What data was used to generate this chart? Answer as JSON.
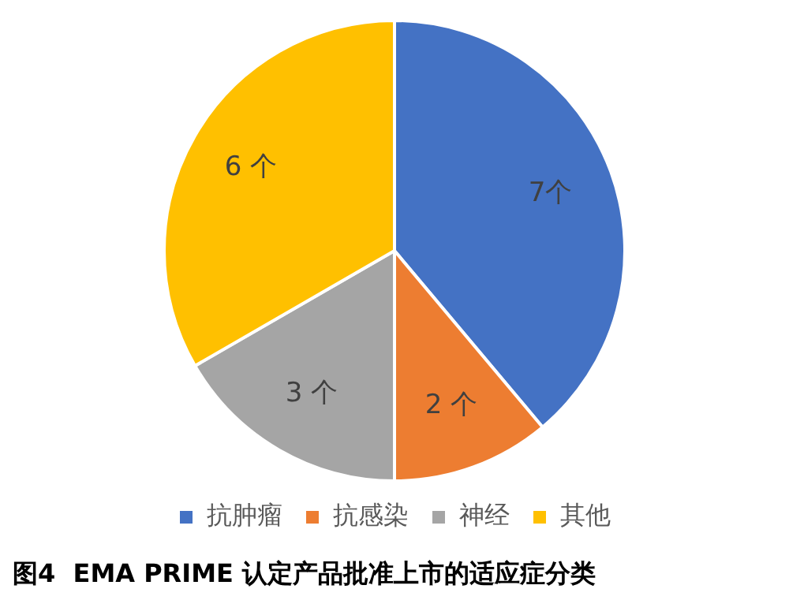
{
  "chart_data": {
    "type": "pie",
    "title": "图4  EMA PRIME 认定产品批准上市的适应症分类",
    "categories": [
      "抗肿瘤",
      "抗感染",
      "神经",
      "其他"
    ],
    "values": [
      7,
      2,
      3,
      6
    ],
    "value_labels": [
      "7个",
      "2 个",
      "3 个",
      "6 个"
    ],
    "colors": [
      "#4472c4",
      "#ed7d31",
      "#a5a5a5",
      "#ffc000"
    ],
    "legend": "bottom"
  }
}
